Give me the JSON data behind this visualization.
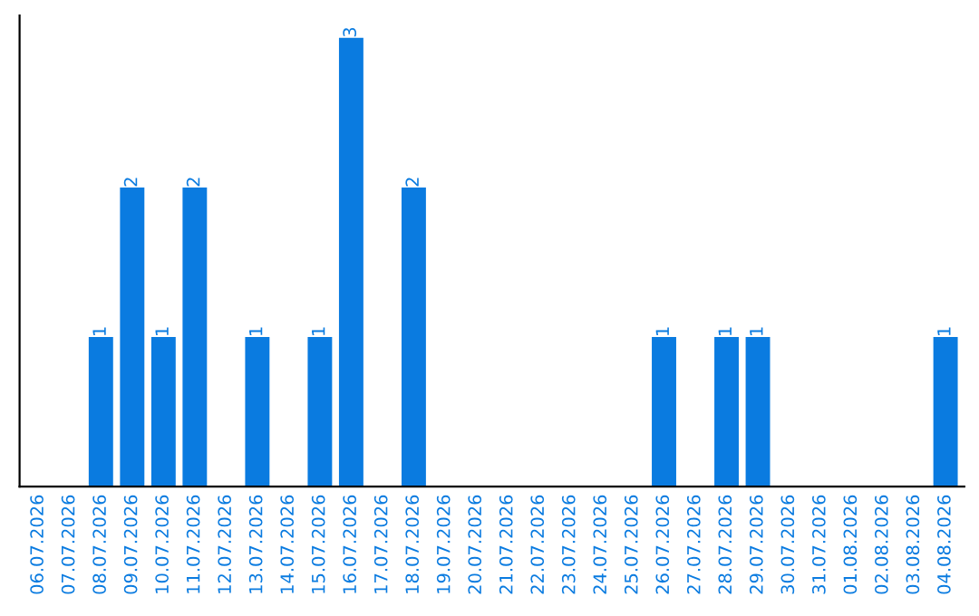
{
  "chart_data": {
    "type": "bar",
    "categories": [
      "06.07.2026",
      "07.07.2026",
      "08.07.2026",
      "09.07.2026",
      "10.07.2026",
      "11.07.2026",
      "12.07.2026",
      "13.07.2026",
      "14.07.2026",
      "15.07.2026",
      "16.07.2026",
      "17.07.2026",
      "18.07.2026",
      "19.07.2026",
      "20.07.2026",
      "21.07.2026",
      "22.07.2026",
      "23.07.2026",
      "24.07.2026",
      "25.07.2026",
      "26.07.2026",
      "27.07.2026",
      "28.07.2026",
      "29.07.2026",
      "30.07.2026",
      "31.07.2026",
      "01.08.2026",
      "02.08.2026",
      "03.08.2026",
      "04.08.2026"
    ],
    "values": [
      0,
      0,
      1,
      2,
      1,
      2,
      0,
      1,
      0,
      1,
      3,
      0,
      2,
      0,
      0,
      0,
      0,
      0,
      0,
      0,
      1,
      0,
      1,
      1,
      0,
      0,
      0,
      0,
      0,
      1
    ],
    "value_labels": [
      null,
      null,
      "1",
      "2",
      "1",
      "2",
      null,
      "1",
      null,
      "1",
      "3",
      null,
      "2",
      null,
      null,
      null,
      null,
      null,
      null,
      null,
      "1",
      null,
      "1",
      "1",
      null,
      null,
      null,
      null,
      null,
      "1"
    ],
    "color": "#0a7be0",
    "tick_labels": "x",
    "grid": false,
    "legend": false
  }
}
